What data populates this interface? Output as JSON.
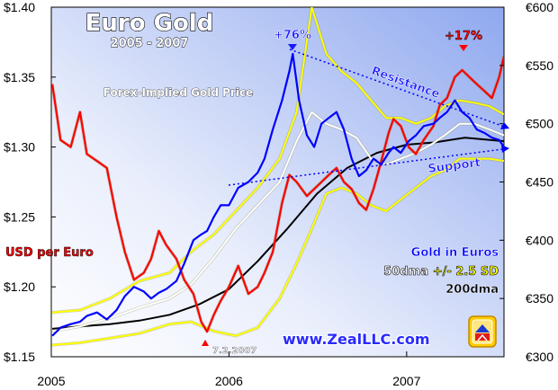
{
  "colors": {
    "usd_per_euro": "#ff0000",
    "gold_euros": "#0000ff",
    "dma50": "#ffffff",
    "sd_band": "#ffff00",
    "dma200": "#000000",
    "trendline": "#0000ff",
    "plot_bg_light": "#ffffff",
    "plot_bg_dark": "#9fb6f1"
  },
  "chart_data": {
    "type": "line",
    "title": "Euro Gold",
    "subtitle": "2005 - 2007",
    "x_ticks": [
      "2005",
      "2006",
      "2007"
    ],
    "y_left_ticks": [
      "$1.40",
      "$1.35",
      "$1.30",
      "$1.25",
      "$1.20",
      "$1.15"
    ],
    "y_right_ticks": [
      "€600",
      "€550",
      "€500",
      "€450",
      "€400",
      "€350",
      "€300"
    ],
    "y_left_range": [
      1.15,
      1.4
    ],
    "y_right_range": [
      300,
      600
    ],
    "x_range": [
      "2005-01-01",
      "2007-07-20"
    ],
    "grid": false,
    "series": [
      {
        "name": "USD per Euro",
        "axis": "left",
        "color": "#ff0000",
        "x": [
          "2005-01-03",
          "2005-01-20",
          "2005-02-10",
          "2005-03-01",
          "2005-03-15",
          "2005-04-05",
          "2005-04-25",
          "2005-05-15",
          "2005-06-01",
          "2005-06-20",
          "2005-07-10",
          "2005-07-25",
          "2005-08-10",
          "2005-08-25",
          "2005-09-15",
          "2005-10-01",
          "2005-10-20",
          "2005-11-05",
          "2005-11-17",
          "2005-12-01",
          "2005-12-15",
          "2006-01-01",
          "2006-01-20",
          "2006-02-10",
          "2006-03-01",
          "2006-03-15",
          "2006-04-01",
          "2006-04-20",
          "2006-05-05",
          "2006-05-20",
          "2006-06-10",
          "2006-06-25",
          "2006-07-10",
          "2006-07-25",
          "2006-08-10",
          "2006-08-25",
          "2006-09-10",
          "2006-09-25",
          "2006-10-10",
          "2006-10-25",
          "2006-11-10",
          "2006-11-25",
          "2006-12-05",
          "2006-12-20",
          "2007-01-05",
          "2007-01-20",
          "2007-02-05",
          "2007-02-25",
          "2007-03-10",
          "2007-03-25",
          "2007-04-10",
          "2007-04-25",
          "2007-05-10",
          "2007-05-25",
          "2007-06-10",
          "2007-06-25",
          "2007-07-10",
          "2007-07-20"
        ],
        "values": [
          1.345,
          1.305,
          1.3,
          1.325,
          1.295,
          1.29,
          1.285,
          1.25,
          1.225,
          1.205,
          1.21,
          1.22,
          1.24,
          1.23,
          1.22,
          1.205,
          1.195,
          1.175,
          1.168,
          1.18,
          1.19,
          1.2,
          1.215,
          1.195,
          1.2,
          1.21,
          1.225,
          1.26,
          1.28,
          1.275,
          1.265,
          1.27,
          1.275,
          1.28,
          1.285,
          1.275,
          1.27,
          1.26,
          1.255,
          1.27,
          1.29,
          1.31,
          1.32,
          1.315,
          1.3,
          1.295,
          1.305,
          1.315,
          1.33,
          1.335,
          1.35,
          1.355,
          1.35,
          1.345,
          1.34,
          1.335,
          1.35,
          1.365
        ]
      },
      {
        "name": "Gold in Euros",
        "axis": "right",
        "color": "#0000ff",
        "x": [
          "2005-01-03",
          "2005-01-20",
          "2005-02-10",
          "2005-03-01",
          "2005-03-15",
          "2005-04-05",
          "2005-04-25",
          "2005-05-15",
          "2005-06-01",
          "2005-06-20",
          "2005-07-10",
          "2005-07-25",
          "2005-08-10",
          "2005-08-25",
          "2005-09-15",
          "2005-10-01",
          "2005-10-20",
          "2005-11-05",
          "2005-11-17",
          "2005-12-01",
          "2005-12-15",
          "2006-01-01",
          "2006-01-20",
          "2006-02-10",
          "2006-03-01",
          "2006-03-15",
          "2006-04-01",
          "2006-04-20",
          "2006-05-05",
          "2006-05-12",
          "2006-05-25",
          "2006-06-10",
          "2006-06-25",
          "2006-07-10",
          "2006-07-25",
          "2006-08-10",
          "2006-08-25",
          "2006-09-10",
          "2006-09-25",
          "2006-10-10",
          "2006-10-25",
          "2006-11-10",
          "2006-11-25",
          "2006-12-05",
          "2006-12-20",
          "2007-01-05",
          "2007-01-20",
          "2007-02-05",
          "2007-02-25",
          "2007-03-10",
          "2007-03-25",
          "2007-04-10",
          "2007-04-25",
          "2007-05-10",
          "2007-05-25",
          "2007-06-10",
          "2007-06-25",
          "2007-07-10",
          "2007-07-20"
        ],
        "values": [
          318,
          325,
          328,
          330,
          335,
          338,
          332,
          340,
          352,
          360,
          356,
          350,
          355,
          358,
          365,
          380,
          400,
          405,
          408,
          420,
          430,
          430,
          445,
          450,
          458,
          470,
          495,
          520,
          545,
          560,
          520,
          490,
          480,
          500,
          505,
          510,
          495,
          470,
          455,
          460,
          470,
          465,
          475,
          480,
          475,
          485,
          490,
          498,
          500,
          505,
          510,
          520,
          510,
          505,
          495,
          492,
          488,
          486,
          480
        ]
      },
      {
        "name": "50dma",
        "axis": "right",
        "color": "#ffffff",
        "x": [
          "2005-01-03",
          "2005-03-01",
          "2005-05-01",
          "2005-07-01",
          "2005-09-01",
          "2005-10-15",
          "2005-12-01",
          "2006-01-15",
          "2006-03-01",
          "2006-04-15",
          "2006-05-20",
          "2006-06-20",
          "2006-07-20",
          "2006-08-20",
          "2006-09-20",
          "2006-10-20",
          "2006-11-20",
          "2006-12-20",
          "2007-01-20",
          "2007-02-20",
          "2007-03-20",
          "2007-04-20",
          "2007-05-20",
          "2007-06-20",
          "2007-07-20"
        ],
        "values": [
          322,
          326,
          333,
          342,
          350,
          362,
          385,
          410,
          430,
          450,
          485,
          510,
          500,
          495,
          488,
          470,
          465,
          470,
          475,
          482,
          490,
          500,
          500,
          495,
          490
        ]
      },
      {
        "name": "+2.5 SD",
        "axis": "right",
        "color": "#ffff00",
        "x": [
          "2005-01-03",
          "2005-03-01",
          "2005-05-01",
          "2005-07-01",
          "2005-09-01",
          "2005-10-15",
          "2005-12-01",
          "2006-01-15",
          "2006-03-01",
          "2006-04-15",
          "2006-05-20",
          "2006-06-20",
          "2006-07-20",
          "2006-08-20",
          "2006-09-20",
          "2006-10-20",
          "2006-11-20",
          "2006-12-20",
          "2007-01-20",
          "2007-02-20",
          "2007-03-20",
          "2007-04-20",
          "2007-05-20",
          "2007-06-20",
          "2007-07-20"
        ],
        "values": [
          338,
          340,
          350,
          365,
          372,
          390,
          405,
          425,
          445,
          470,
          510,
          600,
          560,
          545,
          535,
          520,
          505,
          505,
          500,
          505,
          515,
          520,
          518,
          515,
          508
        ]
      },
      {
        "name": "-2.5 SD",
        "axis": "right",
        "color": "#ffff00",
        "x": [
          "2005-01-03",
          "2005-03-01",
          "2005-05-01",
          "2005-07-01",
          "2005-09-01",
          "2005-10-15",
          "2005-12-01",
          "2006-01-15",
          "2006-03-01",
          "2006-04-15",
          "2006-05-20",
          "2006-06-20",
          "2006-07-20",
          "2006-08-20",
          "2006-09-20",
          "2006-10-20",
          "2006-11-20",
          "2006-12-20",
          "2007-01-20",
          "2007-02-20",
          "2007-03-20",
          "2007-04-20",
          "2007-05-20",
          "2007-06-20",
          "2007-07-20"
        ],
        "values": [
          310,
          312,
          316,
          320,
          328,
          330,
          322,
          318,
          325,
          350,
          380,
          410,
          440,
          445,
          440,
          430,
          425,
          435,
          445,
          455,
          460,
          470,
          470,
          470,
          468
        ]
      },
      {
        "name": "200dma",
        "axis": "right",
        "color": "#000000",
        "x": [
          "2005-01-03",
          "2005-03-01",
          "2005-05-01",
          "2005-07-01",
          "2005-09-01",
          "2005-11-01",
          "2006-01-01",
          "2006-03-01",
          "2006-05-01",
          "2006-07-01",
          "2006-09-01",
          "2006-11-01",
          "2007-01-01",
          "2007-03-01",
          "2007-05-01",
          "2007-07-20"
        ],
        "values": [
          324,
          326,
          328,
          331,
          336,
          345,
          358,
          382,
          410,
          440,
          462,
          475,
          482,
          484,
          488,
          485
        ]
      }
    ],
    "annotations": {
      "pct_gain_2006": "+76%",
      "pct_gain_2007": "+17%",
      "resistance": "Resistance",
      "support": "Support",
      "low_date": "7.2.2007",
      "forex": "Forex-Implied Gold Price",
      "usd_per_euro": "USD per Euro",
      "gold_in_euros": "Gold in Euros",
      "dma50": "50dma",
      "plusminus": "+/- 2.5 SD",
      "dma200": "200dma",
      "url": "www.ZealLLC.com"
    }
  }
}
